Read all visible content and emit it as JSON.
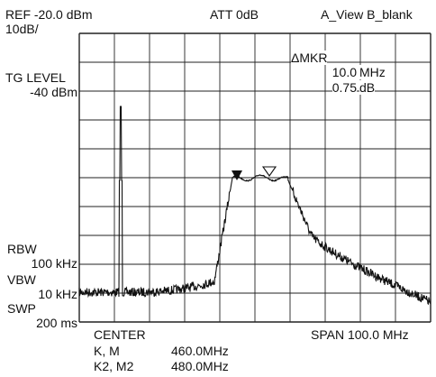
{
  "header": {
    "ref": "REF -20.0 dBm",
    "scale": "10dB/",
    "att": "ATT 0dB",
    "view": "A_View B_blank"
  },
  "left_panel": {
    "tg_label": "TG LEVEL",
    "tg_value": "-40 dBm",
    "rbw_label": "RBW",
    "rbw_value": "100 kHz",
    "vbw_label": "VBW",
    "vbw_value": "10 kHz",
    "swp_label": "SWP",
    "swp_value": "200 ms"
  },
  "marker": {
    "title": "ΔMKR",
    "freq_value": "10.0",
    "freq_unit": "MHz",
    "level_value": "0.75",
    "level_unit": "dB"
  },
  "footer": {
    "center_label": "CENTER",
    "span": "SPAN 100.0 MHz",
    "k_label": "K, M",
    "k_value": "460.0MHz",
    "k2_label": "K2, M2",
    "k2_value": "480.0MHz"
  },
  "display": {
    "trace_color": "#111111",
    "grid_color": "#222222",
    "background": "#ffffff",
    "grid_divisions_x": 10,
    "grid_divisions_y": 10
  }
}
